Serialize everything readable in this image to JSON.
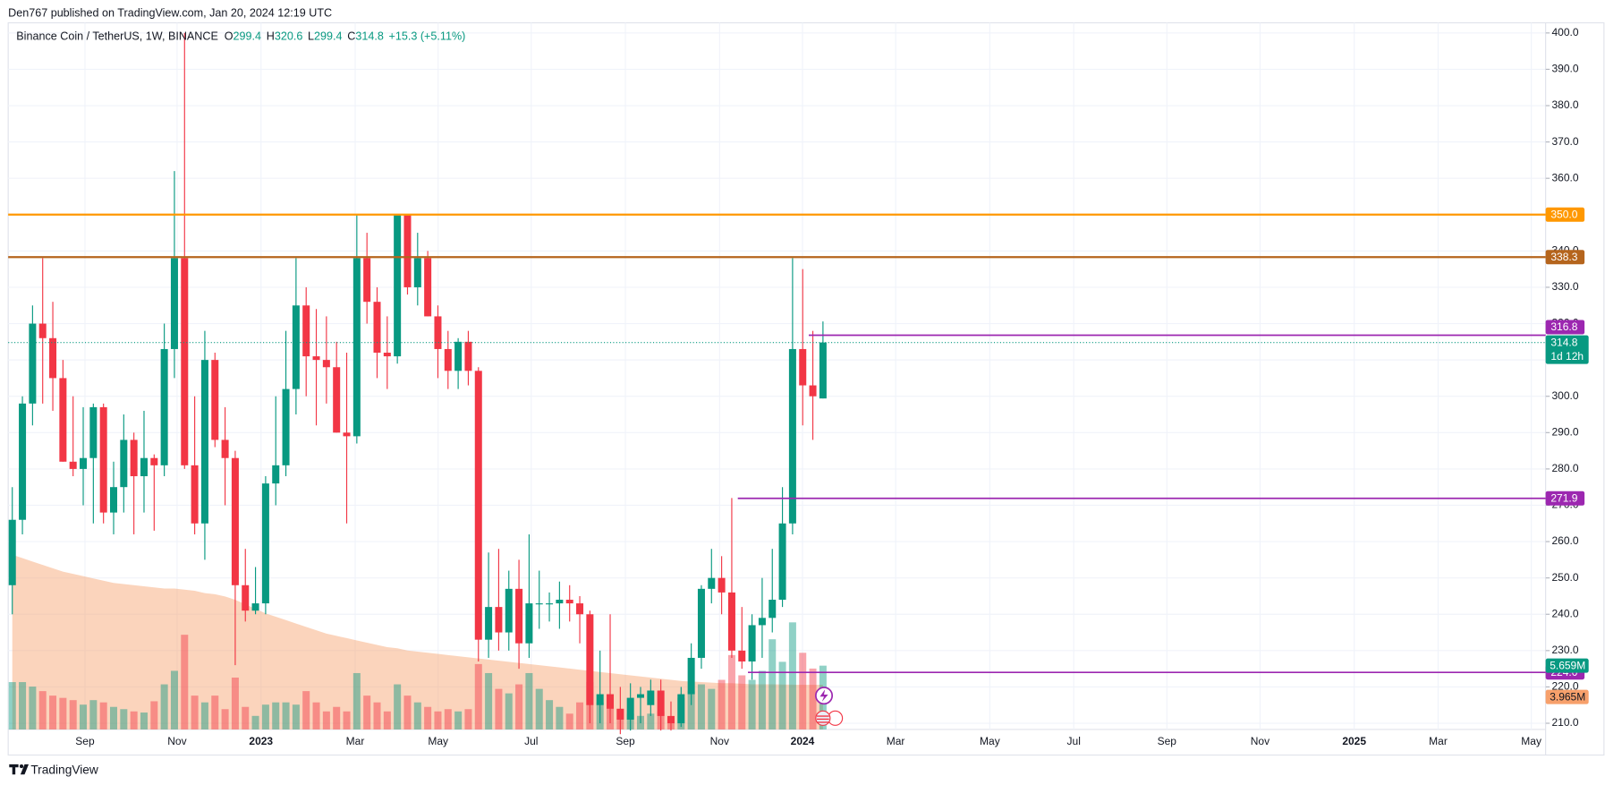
{
  "header": {
    "publisher": "Den767 published on TradingView.com, Jan 20, 2024 12:19 UTC"
  },
  "footer": {
    "brand": "TradingView"
  },
  "chart_data": {
    "type": "candlestick",
    "symbol": "Binance Coin / TetherUS, 1W, BINANCE",
    "legend": {
      "open_label": "O",
      "open": 299.4,
      "high_label": "H",
      "high": 320.6,
      "low_label": "L",
      "low": 299.4,
      "close_label": "C",
      "close": 314.8,
      "change": "+15.3 (+5.11%)"
    },
    "open": [
      248,
      266,
      298,
      320,
      316,
      305,
      282,
      280,
      283,
      297,
      268,
      275,
      288,
      278,
      283,
      281,
      313,
      338,
      281,
      265,
      310,
      288,
      283,
      248,
      241,
      243,
      276,
      281,
      302,
      325,
      311,
      310,
      308,
      290,
      289,
      338,
      326,
      312,
      311,
      350,
      330,
      338,
      322,
      313,
      307,
      315,
      307,
      233,
      242,
      235,
      247,
      232,
      243,
      243,
      243,
      244,
      243,
      240,
      215,
      218,
      214,
      211,
      217,
      215,
      219,
      212,
      210,
      218,
      228,
      247,
      250,
      246,
      230,
      227,
      237,
      239,
      244,
      265,
      313,
      303,
      299.4
    ],
    "high": [
      275,
      300,
      325,
      338,
      326,
      310,
      300,
      297,
      298,
      298,
      282,
      295,
      290,
      296,
      284,
      320,
      362,
      400,
      300,
      318,
      312,
      297,
      285,
      258,
      253,
      278,
      300,
      318,
      338,
      330,
      324,
      322,
      315,
      312,
      350,
      345,
      330,
      322,
      350,
      350,
      345,
      340,
      325,
      318,
      316,
      318,
      308,
      257,
      258,
      252,
      255,
      262,
      252,
      246,
      249,
      248,
      245,
      241,
      230,
      240,
      220,
      221,
      220,
      222,
      222,
      216,
      220,
      232,
      248,
      258,
      256,
      272,
      242,
      240,
      250,
      258,
      275,
      338,
      335,
      318,
      320.6
    ],
    "low": [
      240,
      262,
      292,
      298,
      296,
      282,
      278,
      270,
      265,
      265,
      262,
      268,
      262,
      268,
      263,
      278,
      305,
      280,
      262,
      255,
      286,
      270,
      226,
      238,
      240,
      240,
      270,
      278,
      295,
      300,
      292,
      298,
      290,
      265,
      287,
      320,
      305,
      302,
      309,
      328,
      325,
      322,
      305,
      302,
      302,
      303,
      227,
      228,
      230,
      230,
      225,
      228,
      236,
      238,
      236,
      238,
      232,
      210,
      210,
      210,
      207,
      208,
      210,
      212,
      208,
      208,
      209,
      215,
      225,
      243,
      240,
      228,
      225,
      222,
      228,
      235,
      242,
      262,
      292,
      288,
      299.4
    ],
    "close": [
      266,
      298,
      320,
      316,
      305,
      282,
      280,
      283,
      297,
      268,
      275,
      288,
      278,
      283,
      281,
      313,
      338,
      281,
      265,
      310,
      288,
      283,
      248,
      241,
      243,
      276,
      281,
      302,
      325,
      311,
      310,
      308,
      290,
      289,
      338,
      326,
      312,
      311,
      350,
      330,
      338,
      322,
      313,
      307,
      315,
      307,
      233,
      242,
      235,
      247,
      232,
      243,
      243,
      243,
      244,
      243,
      240,
      215,
      218,
      214,
      211,
      217,
      218,
      219,
      212,
      210,
      218,
      228,
      247,
      250,
      246,
      230,
      227,
      237,
      239,
      244,
      265,
      313,
      303,
      300,
      314.8
    ],
    "volume": [
      4.2,
      4.2,
      3.8,
      3.4,
      3.0,
      2.8,
      2.6,
      2.2,
      2.6,
      2.4,
      2.0,
      1.8,
      1.6,
      1.5,
      2.5,
      4.0,
      5.2,
      8.4,
      3.0,
      2.4,
      3.0,
      1.8,
      4.6,
      2.0,
      1.2,
      2.2,
      2.4,
      2.4,
      2.2,
      3.4,
      2.4,
      1.6,
      2.0,
      1.6,
      5.0,
      3.0,
      2.4,
      1.6,
      4.0,
      3.0,
      2.4,
      2.0,
      1.6,
      1.8,
      1.6,
      1.8,
      5.8,
      5.0,
      3.6,
      3.2,
      4.0,
      5.0,
      3.6,
      2.6,
      2.0,
      1.4,
      2.4,
      4.2,
      2.4,
      2.2,
      1.8,
      1.4,
      1.2,
      1.4,
      1.6,
      1.0,
      2.8,
      3.4,
      4.0,
      3.6,
      4.4,
      6.6,
      4.8,
      4.4,
      5.2,
      8.0,
      6.0,
      9.5,
      6.8,
      5.4,
      5.659
    ],
    "volume_ma": [
      15.5,
      15.2,
      14.9,
      14.6,
      14.3,
      14.0,
      13.8,
      13.6,
      13.4,
      13.2,
      13.0,
      12.9,
      12.8,
      12.7,
      12.6,
      12.5,
      12.5,
      12.4,
      12.3,
      12.1,
      12.0,
      11.8,
      11.5,
      11.1,
      10.7,
      10.3,
      10.0,
      9.7,
      9.4,
      9.1,
      8.8,
      8.5,
      8.3,
      8.1,
      7.9,
      7.7,
      7.5,
      7.3,
      7.2,
      7.0,
      6.9,
      6.8,
      6.7,
      6.6,
      6.5,
      6.4,
      6.3,
      6.2,
      6.1,
      6.0,
      5.9,
      5.8,
      5.7,
      5.6,
      5.5,
      5.4,
      5.3,
      5.2,
      5.1,
      5.0,
      4.9,
      4.8,
      4.7,
      4.6,
      4.5,
      4.4,
      4.3,
      4.25,
      4.2,
      4.15,
      4.1,
      4.1,
      4.05,
      4.0,
      4.0,
      4.0,
      3.98,
      3.97,
      3.96,
      3.965,
      3.965
    ],
    "ylim": [
      208.3,
      402.8
    ],
    "volume_ylim": [
      0,
      62.7
    ],
    "yticks": [
      {
        "value": 210,
        "label": "210.0"
      },
      {
        "value": 220,
        "label": "220.0"
      },
      {
        "value": 230,
        "label": "230.0"
      },
      {
        "value": 240,
        "label": "240.0"
      },
      {
        "value": 250,
        "label": "250.0"
      },
      {
        "value": 260,
        "label": "260.0"
      },
      {
        "value": 270,
        "label": "270.0"
      },
      {
        "value": 280,
        "label": "280.0"
      },
      {
        "value": 290,
        "label": "290.0"
      },
      {
        "value": 300,
        "label": "300.0"
      },
      {
        "value": 310,
        "label": "310.0"
      },
      {
        "value": 320,
        "label": "320.0"
      },
      {
        "value": 330,
        "label": "330.0"
      },
      {
        "value": 340,
        "label": "340.0"
      },
      {
        "value": 350,
        "label": "350.0"
      },
      {
        "value": 360,
        "label": "360.0"
      },
      {
        "value": 370,
        "label": "370.0"
      },
      {
        "value": 380,
        "label": "380.0"
      },
      {
        "value": 390,
        "label": "390.0"
      },
      {
        "value": 400,
        "label": "400.0"
      }
    ],
    "levels": [
      {
        "value": 350,
        "label": "350.0",
        "color": "#ff9800"
      },
      {
        "value": 338.3,
        "label": "338.3",
        "color": "#b5651d"
      },
      {
        "value": 316.8,
        "label": "316.8",
        "color": "#9c27b0"
      },
      {
        "value": 271.9,
        "label": "271.9",
        "color": "#9c27b0"
      },
      {
        "value": 224,
        "label": "224.0",
        "color": "#9c27b0"
      }
    ],
    "last_price": {
      "value": 314.8,
      "label": "314.8",
      "countdown": "1d 12h"
    },
    "volume_label": {
      "value": 5.659,
      "label": "5.659M"
    },
    "volume_ma_label": {
      "value": 3.965,
      "label": "3.965M"
    },
    "x_labels": [
      "Sep",
      "Nov",
      "2023",
      "Mar",
      "May",
      "Jul",
      "Sep",
      "Nov",
      "2024",
      "Mar",
      "May",
      "Jul",
      "Sep",
      "Nov",
      "2025",
      "Mar",
      "May"
    ],
    "colors": {
      "up": "#089981",
      "down": "#f23645",
      "volume_ma": "#f7a06b"
    },
    "grid": true
  }
}
